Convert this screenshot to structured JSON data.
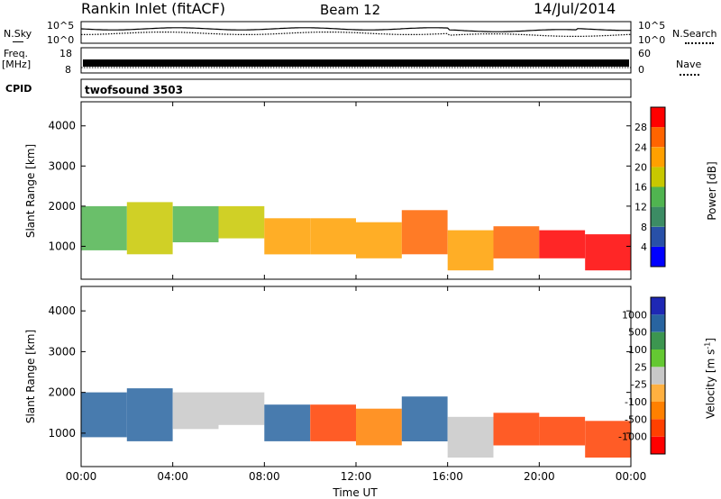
{
  "header": {
    "station": "Rankin Inlet (fitACF)",
    "beam": "Beam 12",
    "date": "14/Jul/2014"
  },
  "noise_panel": {
    "left_label": "N.Sky",
    "right_label": "N.Search",
    "y_ticks": [
      "10^5",
      "10^0"
    ]
  },
  "freq_panel": {
    "left_label_1": "Freq.",
    "left_label_2": "[MHz]",
    "left_ticks": [
      "18",
      "8"
    ],
    "right_label": "Nave",
    "right_ticks": [
      "60",
      "0"
    ]
  },
  "cpid_panel": {
    "label": "CPID",
    "program": "twofsound 3503"
  },
  "colors": {
    "power_scale": [
      "#0000ff",
      "#2850a8",
      "#3c8c64",
      "#50b450",
      "#c8c800",
      "#ffa000",
      "#ff6400",
      "#ff0000"
    ],
    "velocity_scale": [
      "#ff0000",
      "#ff4000",
      "#ff8000",
      "#ffb040",
      "#c8c8c8",
      "#64c832",
      "#3c9650",
      "#2864a0",
      "#1e28b4"
    ]
  },
  "chart_data": [
    {
      "type": "heatmap",
      "title": "",
      "xlabel": "",
      "ylabel": "Slant Range [km]",
      "x_ticks": [
        "00:00",
        "04:00",
        "08:00",
        "12:00",
        "16:00",
        "20:00",
        "00:00"
      ],
      "y_ticks": [
        1000,
        2000,
        3000,
        4000
      ],
      "ylim": [
        180,
        4600
      ],
      "colorbar": {
        "label": "Power [dB]",
        "ticks": [
          4,
          8,
          12,
          16,
          20,
          24,
          28
        ]
      },
      "mean_power_by_hour": [
        {
          "hour": 0,
          "range_km": [
            900,
            2000
          ],
          "power_db": 14
        },
        {
          "hour": 2,
          "range_km": [
            800,
            2100
          ],
          "power_db": 16
        },
        {
          "hour": 4,
          "range_km": [
            1100,
            2000
          ],
          "power_db": 14
        },
        {
          "hour": 6,
          "range_km": [
            1200,
            2000
          ],
          "power_db": 16
        },
        {
          "hour": 8,
          "range_km": [
            800,
            1700
          ],
          "power_db": 20
        },
        {
          "hour": 10,
          "range_km": [
            800,
            1700
          ],
          "power_db": 20
        },
        {
          "hour": 12,
          "range_km": [
            700,
            1600
          ],
          "power_db": 22
        },
        {
          "hour": 14,
          "range_km": [
            800,
            1900
          ],
          "power_db": 24
        },
        {
          "hour": 16,
          "range_km": [
            400,
            1400
          ],
          "power_db": 22
        },
        {
          "hour": 18,
          "range_km": [
            700,
            1500
          ],
          "power_db": 24
        },
        {
          "hour": 20,
          "range_km": [
            700,
            1400
          ],
          "power_db": 28
        },
        {
          "hour": 22,
          "range_km": [
            400,
            1300
          ],
          "power_db": 28
        }
      ]
    },
    {
      "type": "heatmap",
      "title": "",
      "xlabel": "Time UT",
      "ylabel": "Slant Range [km]",
      "x_ticks": [
        "00:00",
        "04:00",
        "08:00",
        "12:00",
        "16:00",
        "20:00",
        "00:00"
      ],
      "y_ticks": [
        1000,
        2000,
        3000,
        4000
      ],
      "ylim": [
        180,
        4600
      ],
      "colorbar": {
        "label": "Velocity [m s^-1]",
        "ticks": [
          "1000",
          "500",
          "100",
          "25",
          "-25",
          "-100",
          "-500",
          "-1000"
        ]
      },
      "mean_velocity_by_hour": [
        {
          "hour": 0,
          "range_km": [
            900,
            2000
          ],
          "velocity": 300
        },
        {
          "hour": 2,
          "range_km": [
            800,
            2100
          ],
          "velocity": 500
        },
        {
          "hour": 4,
          "range_km": [
            1100,
            2000
          ],
          "velocity": 0
        },
        {
          "hour": 6,
          "range_km": [
            1200,
            2000
          ],
          "velocity": 0
        },
        {
          "hour": 8,
          "range_km": [
            800,
            1700
          ],
          "velocity": 500
        },
        {
          "hour": 10,
          "range_km": [
            800,
            1700
          ],
          "velocity": -300
        },
        {
          "hour": 12,
          "range_km": [
            700,
            1600
          ],
          "velocity": -200
        },
        {
          "hour": 14,
          "range_km": [
            800,
            1900
          ],
          "velocity": 300
        },
        {
          "hour": 16,
          "range_km": [
            400,
            1400
          ],
          "velocity": 0
        },
        {
          "hour": 18,
          "range_km": [
            700,
            1500
          ],
          "velocity": -300
        },
        {
          "hour": 20,
          "range_km": [
            700,
            1400
          ],
          "velocity": -400
        },
        {
          "hour": 22,
          "range_km": [
            400,
            1300
          ],
          "velocity": -300
        }
      ]
    }
  ]
}
